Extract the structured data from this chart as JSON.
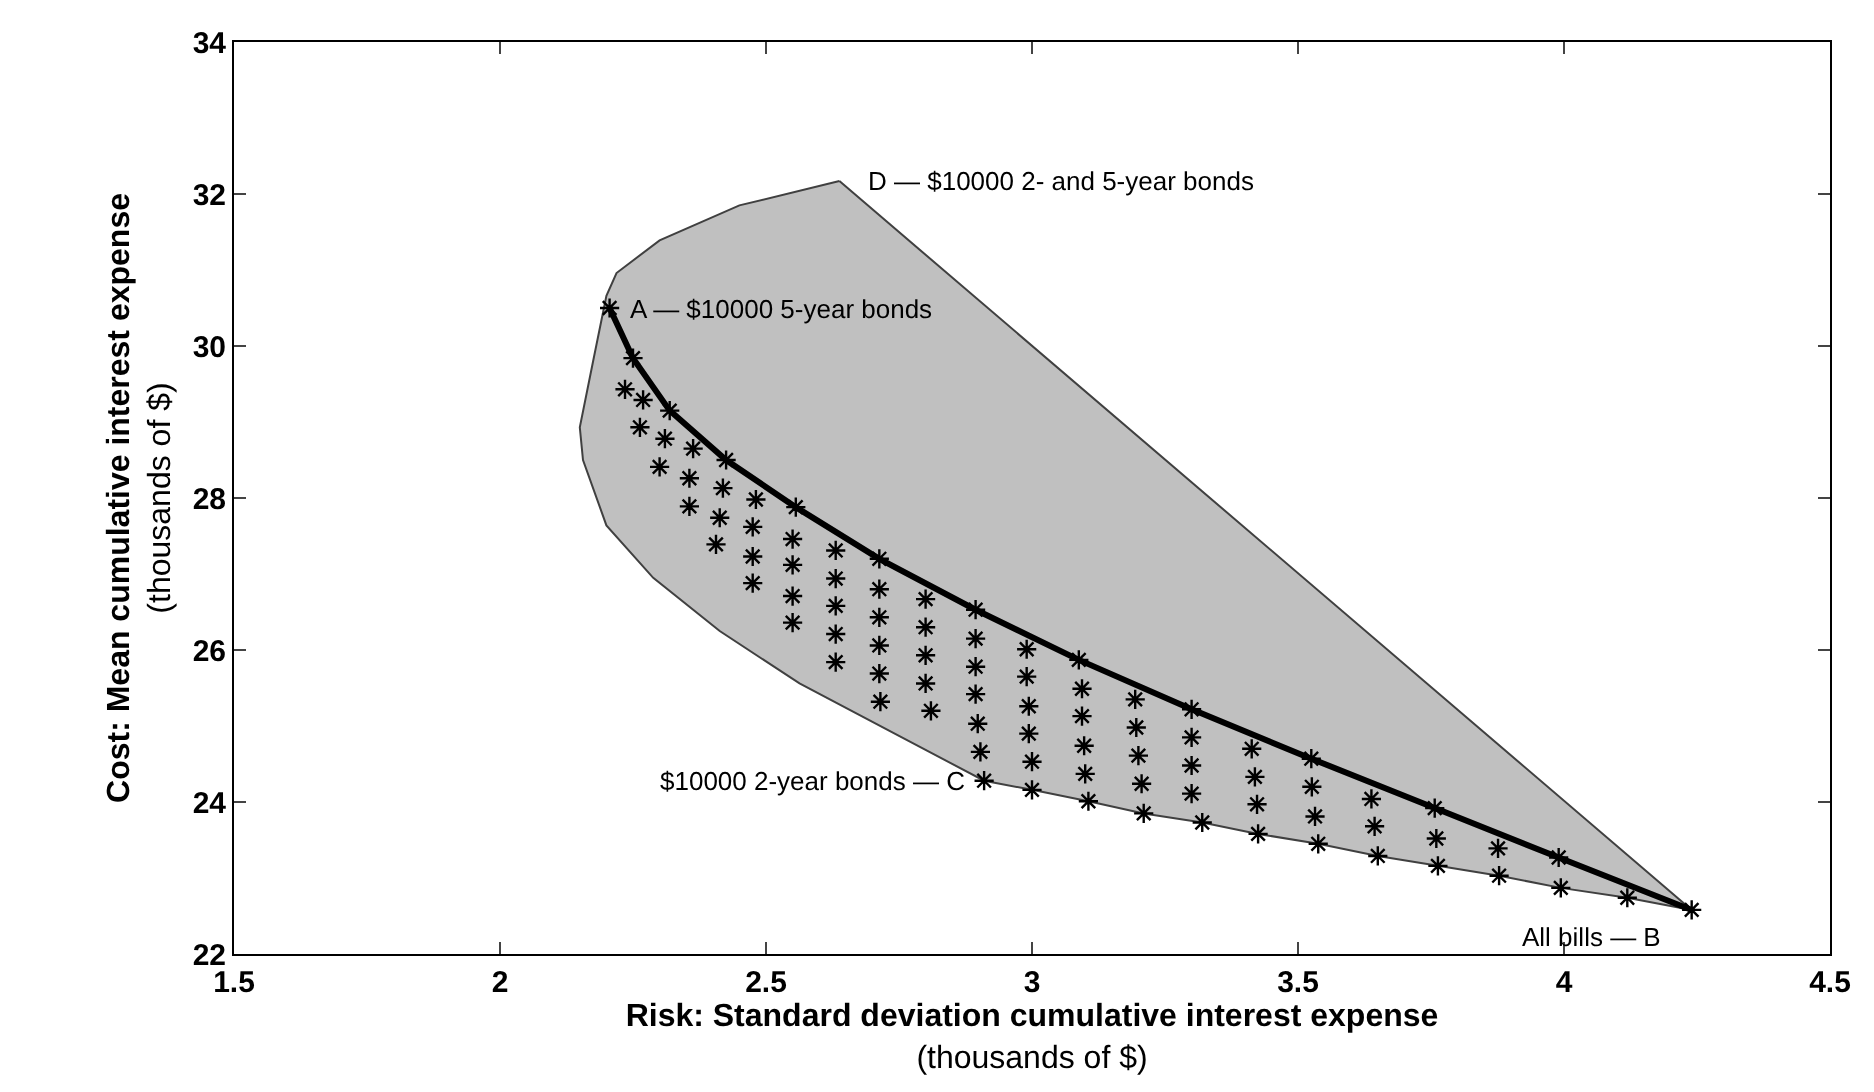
{
  "chart_data": {
    "type": "scatter",
    "xlabel": "Risk: Standard deviation cumulative interest expense\n(thousands of $)",
    "ylabel": "Cost: Mean cumulative interest expense\n(thousands of $)",
    "xlim": [
      1.5,
      4.5
    ],
    "xticks": [
      1.5,
      2,
      2.5,
      3,
      3.5,
      4,
      4.5
    ],
    "ylim": [
      22,
      34
    ],
    "yticks": [
      22,
      24,
      26,
      28,
      30,
      32,
      34
    ],
    "series": [
      {
        "type": "area",
        "color": "#c0c0c0",
        "marker": "none",
        "x": [
          2.638,
          2.45,
          2.3,
          2.219,
          2.2,
          2.175,
          2.15,
          2.156,
          2.2,
          2.288,
          2.413,
          2.563,
          2.75,
          2.91,
          3.0,
          3.106,
          3.21,
          3.32,
          3.425,
          3.538,
          3.65,
          3.763,
          3.878,
          3.994,
          4.119,
          4.24,
          2.638
        ],
        "values": [
          32.17,
          31.85,
          31.39,
          30.96,
          30.66,
          29.8,
          28.93,
          28.5,
          27.64,
          26.95,
          26.25,
          25.56,
          24.87,
          24.28,
          24.16,
          24.01,
          23.85,
          23.73,
          23.58,
          23.45,
          23.29,
          23.16,
          23.03,
          22.87,
          22.74,
          22.58,
          32.17
        ]
      },
      {
        "type": "line",
        "color": "#000000",
        "marker": "cross",
        "line_style": "solid",
        "x": [
          2.206,
          2.25,
          2.319,
          2.425,
          2.556,
          2.713,
          2.894,
          3.088,
          3.3,
          3.525,
          3.757,
          3.99,
          4.24
        ],
        "values": [
          30.5,
          29.84,
          29.15,
          28.5,
          27.88,
          27.2,
          26.53,
          25.87,
          25.22,
          24.57,
          23.92,
          23.27,
          22.58
        ]
      },
      {
        "color": "#000000",
        "marker": "cross",
        "x": [
          2.235,
          2.269,
          2.263,
          2.31,
          2.363,
          2.3,
          2.356,
          2.419,
          2.481,
          2.356,
          2.413,
          2.475,
          2.55,
          2.631,
          2.406,
          2.475,
          2.55,
          2.631,
          2.713,
          2.8,
          2.475,
          2.55,
          2.631,
          2.713,
          2.8,
          2.894,
          2.99,
          2.55,
          2.631,
          2.713,
          2.8,
          2.894,
          2.99,
          3.094,
          3.194,
          2.631,
          2.713,
          2.8,
          2.894,
          2.994,
          3.094,
          3.196,
          3.3,
          2.715,
          2.81,
          2.898,
          2.994,
          3.098,
          3.2,
          3.3,
          2.903,
          3.0,
          3.1,
          3.206,
          3.3,
          2.91,
          3.0,
          3.106,
          3.21,
          3.32,
          3.413,
          3.419,
          3.423,
          3.425,
          3.526,
          3.532,
          3.538,
          3.638,
          3.644,
          3.65,
          3.76,
          3.763,
          3.876,
          3.878,
          3.994,
          4.119
        ],
        "values": [
          29.43,
          29.29,
          28.93,
          28.78,
          28.65,
          28.41,
          28.26,
          28.13,
          27.98,
          27.89,
          27.74,
          27.62,
          27.46,
          27.31,
          27.39,
          27.23,
          27.12,
          26.94,
          26.8,
          26.67,
          26.88,
          26.71,
          26.58,
          26.43,
          26.3,
          26.15,
          26.01,
          26.36,
          26.21,
          26.06,
          25.93,
          25.78,
          25.65,
          25.49,
          25.35,
          25.84,
          25.69,
          25.56,
          25.42,
          25.26,
          25.13,
          24.98,
          24.85,
          25.32,
          25.2,
          25.03,
          24.9,
          24.74,
          24.61,
          24.48,
          24.66,
          24.53,
          24.37,
          24.24,
          24.11,
          24.28,
          24.16,
          24.01,
          23.85,
          23.73,
          24.7,
          24.33,
          23.97,
          23.58,
          24.2,
          23.81,
          23.45,
          24.04,
          23.68,
          23.29,
          23.52,
          23.16,
          23.39,
          23.03,
          22.87,
          22.74
        ]
      }
    ],
    "annotations": [
      {
        "text": "D — $10000 2- and 5-year bonds",
        "x": 2.638,
        "y": 32.17
      },
      {
        "text": "A — $10000 5-year bonds",
        "x": 2.206,
        "y": 30.5
      },
      {
        "text": "$10000 2-year bonds — C",
        "x": 2.91,
        "y": 24.28
      },
      {
        "text": "All bills — B",
        "x": 4.24,
        "y": 22.58
      }
    ]
  }
}
